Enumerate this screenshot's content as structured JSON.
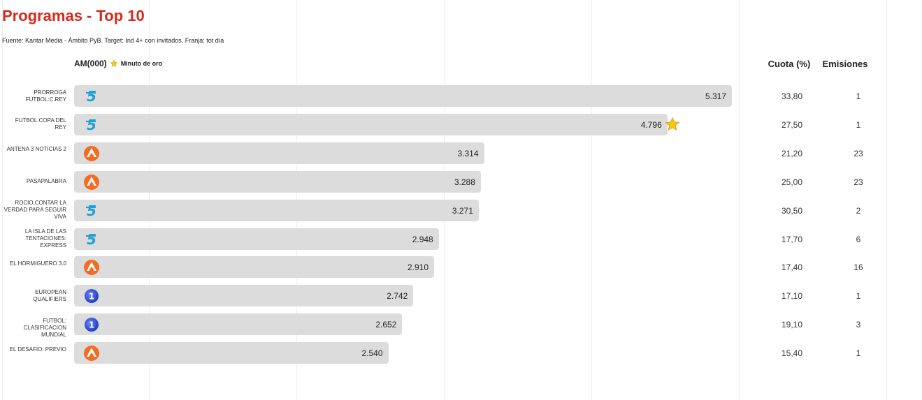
{
  "title": "Programas - Top 10",
  "source": "Fuente: Kantar Media - Ámbito PyB. Target: Ind 4+ con invitados. Franja: tot día",
  "headers": {
    "am": "AM(000)",
    "gold_minute": "Minuto de oro",
    "cuota": "Cuota (%)",
    "emisiones": "Emisiones"
  },
  "colors": {
    "title": "#d52b1e",
    "bar": "#dcdcdc",
    "star": "#f5c518",
    "telecinco": "#1ba0d8",
    "antena3": "#f26c21",
    "la1": "#1f3fbf"
  },
  "chart_data": {
    "type": "bar",
    "orientation": "horizontal",
    "title": "Programas - Top 10",
    "xlabel": "AM(000)",
    "xlim": [
      0,
      5317
    ],
    "categories": [
      "PRORROGA FUTBOL:C.REY",
      "FUTBOL:COPA DEL REY",
      "ANTENA 3 NOTICIAS 2",
      "PASAPALABRA",
      "ROCIO,CONTAR LA VERDAD PARA SEGUIR VIVA",
      "LA ISLA DE LAS TENTACIONES: EXPRESS",
      "EL HORMIGUERO 3.0",
      "EUROPEAN QUALIFIERS",
      "FUTBOL: CLASIFICACION MUNDIAL",
      "EL DESAFIO: PREVIO"
    ],
    "values": [
      5317,
      4796,
      3314,
      3288,
      3271,
      2948,
      2910,
      2742,
      2652,
      2540
    ],
    "value_labels": [
      "5.317",
      "4.796",
      "3.314",
      "3.288",
      "3.271",
      "2.948",
      "2.910",
      "2.742",
      "2.652",
      "2.540"
    ],
    "cuota": [
      "33,80",
      "27,50",
      "21,20",
      "25,00",
      "30,50",
      "17,70",
      "17,40",
      "17,10",
      "19,10",
      "15,40"
    ],
    "emisiones": [
      "1",
      "1",
      "23",
      "23",
      "2",
      "6",
      "16",
      "1",
      "3",
      "1"
    ],
    "channels": [
      "telecinco",
      "telecinco",
      "antena3",
      "antena3",
      "telecinco",
      "telecinco",
      "antena3",
      "la1",
      "la1",
      "antena3"
    ],
    "gold_minute_index": 1,
    "legend": "top-left",
    "grid": true
  }
}
